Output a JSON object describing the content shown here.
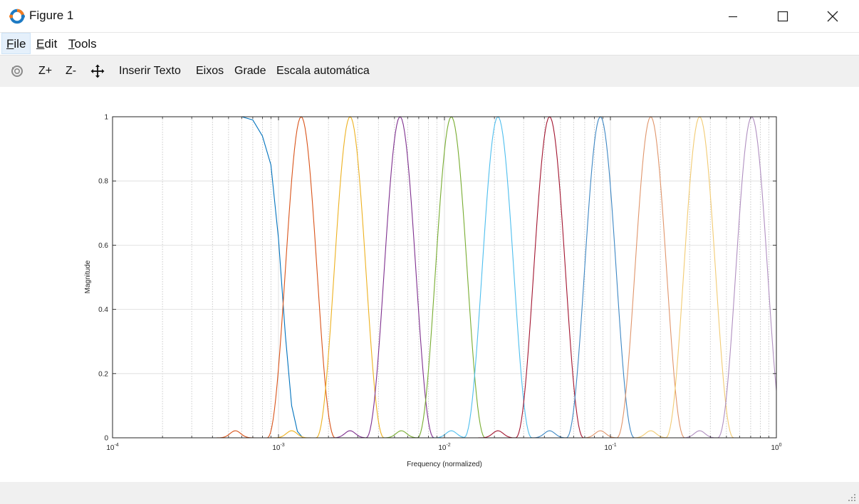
{
  "window": {
    "title": "Figure 1",
    "app_icon": "octave-logo-icon"
  },
  "menubar": {
    "items": [
      {
        "label": "File",
        "mnemonic": "F",
        "rest": "ile"
      },
      {
        "label": "Edit",
        "mnemonic": "E",
        "rest": "dit"
      },
      {
        "label": "Tools",
        "mnemonic": "T",
        "rest": "ools"
      }
    ]
  },
  "toolbar": {
    "rotate_icon": "rotate-icon",
    "zoom_in": "Z+",
    "zoom_out": "Z-",
    "pan_icon": "pan-icon",
    "insert_text": "Inserir Texto",
    "axes": "Eixos",
    "grid": "Grade",
    "autoscale": "Escala automática"
  },
  "chart_data": {
    "type": "line",
    "title": "",
    "xlabel": "Frequency (normalized)",
    "ylabel": "Magnitude",
    "xscale": "log",
    "xlim": [
      0.0001,
      1
    ],
    "ylim": [
      0,
      1
    ],
    "grid": true,
    "x_tick_labels": [
      {
        "base": "10",
        "exp": "-4"
      },
      {
        "base": "10",
        "exp": "-3"
      },
      {
        "base": "10",
        "exp": "-2"
      },
      {
        "base": "10",
        "exp": "-1"
      },
      {
        "base": "10",
        "exp": "0"
      }
    ],
    "y_tick_labels": [
      "0",
      "0.2",
      "0.4",
      "0.6",
      "0.8",
      "1"
    ],
    "series": [
      {
        "color": "#0072bd",
        "type": "lowpass",
        "x": [
          0.0001,
          0.0006,
          0.0007,
          0.0008,
          0.0009,
          0.001,
          0.0011,
          0.0012,
          0.0013,
          0.0014,
          0.0016,
          0.002
        ],
        "y": [
          1,
          1,
          0.99,
          0.94,
          0.85,
          0.62,
          0.32,
          0.1,
          0.02,
          0,
          0,
          0
        ]
      },
      {
        "color": "#d95319",
        "type": "bandpass",
        "center": 0.00137,
        "sidelobe": 0.00055
      },
      {
        "color": "#edb120",
        "type": "bandpass",
        "center": 0.0027,
        "sidelobe": 0.0012
      },
      {
        "color": "#7e2f8e",
        "type": "bandpass",
        "center": 0.0054,
        "sidelobe": 0.0027
      },
      {
        "color": "#77ac30",
        "type": "bandpass",
        "center": 0.011,
        "sidelobe": 0.0055
      },
      {
        "color": "#4dbeee",
        "type": "bandpass",
        "center": 0.021,
        "sidelobe": 0.011
      },
      {
        "color": "#a2142f",
        "type": "bandpass",
        "center": 0.043,
        "sidelobe": 0.021
      },
      {
        "color": "#3d87c4",
        "type": "bandpass",
        "center": 0.087,
        "sidelobe": 0.043
      },
      {
        "color": "#e0956b",
        "type": "bandpass",
        "center": 0.175,
        "sidelobe": 0.087
      },
      {
        "color": "#f2cb73",
        "type": "bandpass",
        "center": 0.345,
        "sidelobe": 0.175
      },
      {
        "color": "#b08fc0",
        "type": "bandpass",
        "center": 0.71,
        "sidelobe": 0.345
      }
    ]
  }
}
